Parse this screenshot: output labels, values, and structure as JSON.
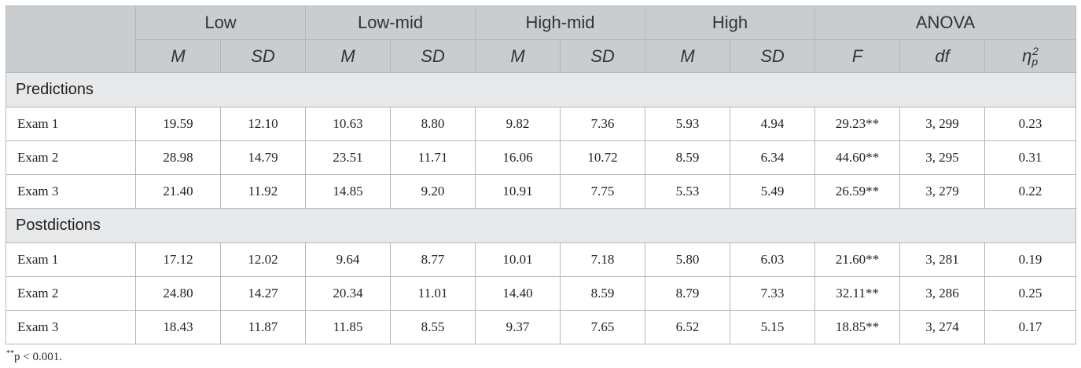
{
  "header": {
    "groups": [
      "Low",
      "Low-mid",
      "High-mid",
      "High",
      "ANOVA"
    ],
    "subheaders": [
      "M",
      "SD",
      "M",
      "SD",
      "M",
      "SD",
      "M",
      "SD",
      "F",
      "df",
      {
        "base": "η",
        "sub": "p",
        "sup": "2"
      }
    ]
  },
  "sections": [
    {
      "title": "Predictions",
      "rows": [
        [
          "Exam 1",
          "19.59",
          "12.10",
          "10.63",
          "8.80",
          "9.82",
          "7.36",
          "5.93",
          "4.94",
          "29.23**",
          "3, 299",
          "0.23"
        ],
        [
          "Exam 2",
          "28.98",
          "14.79",
          "23.51",
          "11.71",
          "16.06",
          "10.72",
          "8.59",
          "6.34",
          "44.60**",
          "3, 295",
          "0.31"
        ],
        [
          "Exam 3",
          "21.40",
          "11.92",
          "14.85",
          "9.20",
          "10.91",
          "7.75",
          "5.53",
          "5.49",
          "26.59**",
          "3, 279",
          "0.22"
        ]
      ]
    },
    {
      "title": "Postdictions",
      "rows": [
        [
          "Exam 1",
          "17.12",
          "12.02",
          "9.64",
          "8.77",
          "10.01",
          "7.18",
          "5.80",
          "6.03",
          "21.60**",
          "3, 281",
          "0.19"
        ],
        [
          "Exam 2",
          "24.80",
          "14.27",
          "20.34",
          "11.01",
          "14.40",
          "8.59",
          "8.79",
          "7.33",
          "32.11**",
          "3, 286",
          "0.25"
        ],
        [
          "Exam 3",
          "18.43",
          "11.87",
          "11.85",
          "8.55",
          "9.37",
          "7.65",
          "6.52",
          "5.15",
          "18.85**",
          "3, 274",
          "0.17"
        ]
      ]
    }
  ],
  "footnote": {
    "mark": "**",
    "text": "p < 0.001."
  }
}
